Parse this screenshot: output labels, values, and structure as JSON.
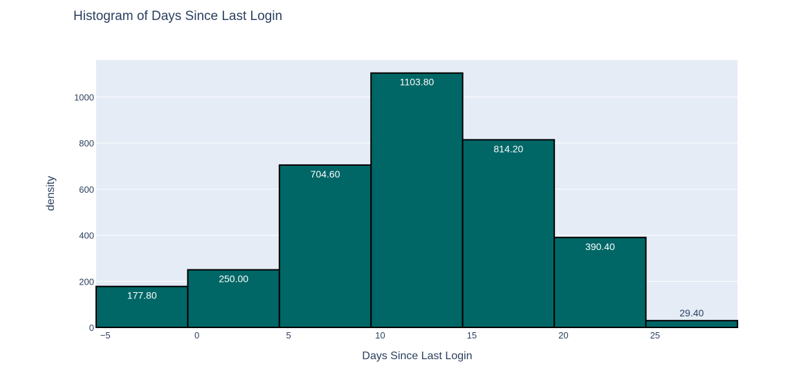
{
  "chart_data": {
    "type": "bar",
    "title": "Histogram of Days Since Last Login",
    "xlabel": "Days Since Last Login",
    "ylabel": "density",
    "xlim": [
      -5.5,
      29.5
    ],
    "ylim": [
      0,
      1160
    ],
    "x_ticks": [
      {
        "value": -5,
        "label": "−5"
      },
      {
        "value": 0,
        "label": "0"
      },
      {
        "value": 5,
        "label": "5"
      },
      {
        "value": 10,
        "label": "10"
      },
      {
        "value": 15,
        "label": "15"
      },
      {
        "value": 20,
        "label": "20"
      },
      {
        "value": 25,
        "label": "25"
      }
    ],
    "y_ticks": [
      0,
      200,
      400,
      600,
      800,
      1000
    ],
    "bins": [
      {
        "x0": -5.5,
        "x1": -0.5,
        "value": 177.8,
        "label": "177.80"
      },
      {
        "x0": -0.5,
        "x1": 4.5,
        "value": 250.0,
        "label": "250.00"
      },
      {
        "x0": 4.5,
        "x1": 9.5,
        "value": 704.6,
        "label": "704.60"
      },
      {
        "x0": 9.5,
        "x1": 14.5,
        "value": 1103.8,
        "label": "1103.80"
      },
      {
        "x0": 14.5,
        "x1": 19.5,
        "value": 814.2,
        "label": "814.20"
      },
      {
        "x0": 19.5,
        "x1": 24.5,
        "value": 390.4,
        "label": "390.40"
      },
      {
        "x0": 24.5,
        "x1": 29.5,
        "value": 29.4,
        "label": "29.40"
      }
    ],
    "grid": true,
    "colors": {
      "bar_fill": "#006666",
      "bar_edge": "#000000",
      "plot_bg": "#e5ecf6",
      "grid": "#ffffff",
      "inside_label": "#ffffff",
      "outside_label": "#2a3f5f"
    }
  }
}
